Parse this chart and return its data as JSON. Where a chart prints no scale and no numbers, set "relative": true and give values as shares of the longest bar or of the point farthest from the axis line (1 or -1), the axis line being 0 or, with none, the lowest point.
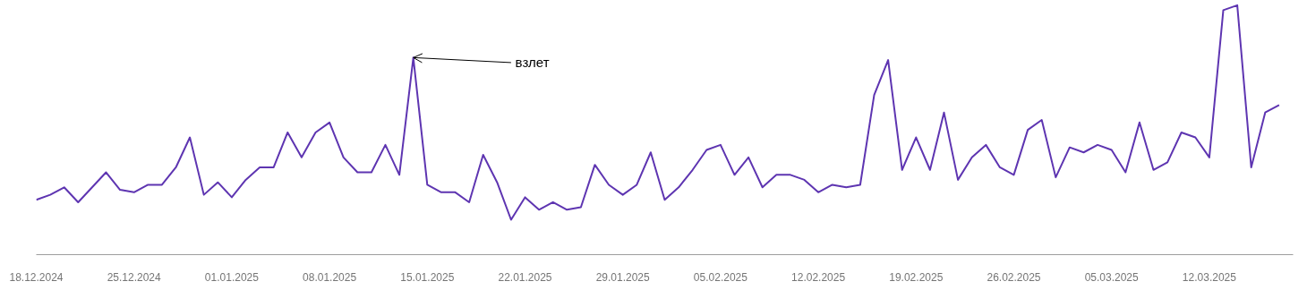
{
  "chart_data": {
    "type": "line",
    "relative": true,
    "grid": false,
    "marker": "none",
    "line_style": "solid",
    "x": [
      "2024-12-18",
      "2024-12-19",
      "2024-12-20",
      "2024-12-21",
      "2024-12-22",
      "2024-12-23",
      "2024-12-24",
      "2024-12-25",
      "2024-12-26",
      "2024-12-27",
      "2024-12-28",
      "2024-12-29",
      "2024-12-30",
      "2024-12-31",
      "2025-01-01",
      "2025-01-02",
      "2025-01-03",
      "2025-01-04",
      "2025-01-05",
      "2025-01-06",
      "2025-01-07",
      "2025-01-08",
      "2025-01-09",
      "2025-01-10",
      "2025-01-11",
      "2025-01-12",
      "2025-01-13",
      "2025-01-14",
      "2025-01-15",
      "2025-01-16",
      "2025-01-17",
      "2025-01-18",
      "2025-01-19",
      "2025-01-20",
      "2025-01-21",
      "2025-01-22",
      "2025-01-23",
      "2025-01-24",
      "2025-01-25",
      "2025-01-26",
      "2025-01-27",
      "2025-01-28",
      "2025-01-29",
      "2025-01-30",
      "2025-01-31",
      "2025-02-01",
      "2025-02-02",
      "2025-02-03",
      "2025-02-04",
      "2025-02-05",
      "2025-02-06",
      "2025-02-07",
      "2025-02-08",
      "2025-02-09",
      "2025-02-10",
      "2025-02-11",
      "2025-02-12",
      "2025-02-13",
      "2025-02-14",
      "2025-02-15",
      "2025-02-16",
      "2025-02-17",
      "2025-02-18",
      "2025-02-19",
      "2025-02-20",
      "2025-02-21",
      "2025-02-22",
      "2025-02-23",
      "2025-02-24",
      "2025-02-25",
      "2025-02-26",
      "2025-02-27",
      "2025-02-28",
      "2025-03-01",
      "2025-03-02",
      "2025-03-03",
      "2025-03-04",
      "2025-03-05",
      "2025-03-06",
      "2025-03-07",
      "2025-03-08",
      "2025-03-09",
      "2025-03-10",
      "2025-03-11",
      "2025-03-12",
      "2025-03-13",
      "2025-03-14",
      "2025-03-15",
      "2025-03-16",
      "2025-03-17"
    ],
    "series": [
      {
        "color": "#5e35b1",
        "values": [
          0.22,
          0.24,
          0.27,
          0.21,
          0.27,
          0.33,
          0.26,
          0.25,
          0.28,
          0.28,
          0.35,
          0.47,
          0.24,
          0.29,
          0.23,
          0.3,
          0.35,
          0.35,
          0.49,
          0.39,
          0.49,
          0.53,
          0.39,
          0.33,
          0.33,
          0.44,
          0.32,
          0.79,
          0.28,
          0.25,
          0.25,
          0.21,
          0.4,
          0.29,
          0.14,
          0.23,
          0.18,
          0.21,
          0.18,
          0.19,
          0.36,
          0.28,
          0.24,
          0.28,
          0.41,
          0.22,
          0.27,
          0.34,
          0.42,
          0.44,
          0.32,
          0.39,
          0.27,
          0.32,
          0.32,
          0.3,
          0.25,
          0.28,
          0.27,
          0.28,
          0.64,
          0.78,
          0.34,
          0.47,
          0.34,
          0.57,
          0.3,
          0.39,
          0.44,
          0.35,
          0.32,
          0.5,
          0.54,
          0.31,
          0.43,
          0.41,
          0.44,
          0.42,
          0.33,
          0.53,
          0.34,
          0.37,
          0.49,
          0.47,
          0.39,
          0.98,
          1.0,
          0.35,
          0.57,
          0.6
        ]
      }
    ],
    "xlim": [
      "2024-12-18",
      "2025-03-18"
    ],
    "xticks": [
      {
        "value": "2024-12-18",
        "label": "18.12.2024"
      },
      {
        "value": "2024-12-25",
        "label": "25.12.2024"
      },
      {
        "value": "2025-01-01",
        "label": "01.01.2025"
      },
      {
        "value": "2025-01-08",
        "label": "08.01.2025"
      },
      {
        "value": "2025-01-15",
        "label": "15.01.2025"
      },
      {
        "value": "2025-01-22",
        "label": "22.01.2025"
      },
      {
        "value": "2025-01-29",
        "label": "29.01.2025"
      },
      {
        "value": "2025-02-05",
        "label": "05.02.2025"
      },
      {
        "value": "2025-02-12",
        "label": "12.02.2025"
      },
      {
        "value": "2025-02-19",
        "label": "19.02.2025"
      },
      {
        "value": "2025-02-26",
        "label": "26.02.2025"
      },
      {
        "value": "2025-03-05",
        "label": "05.03.2025"
      },
      {
        "value": "2025-03-12",
        "label": "12.03.2025"
      }
    ],
    "annotations": [
      {
        "text": "взлет",
        "x": "2025-01-14",
        "y": 0.79
      }
    ]
  }
}
